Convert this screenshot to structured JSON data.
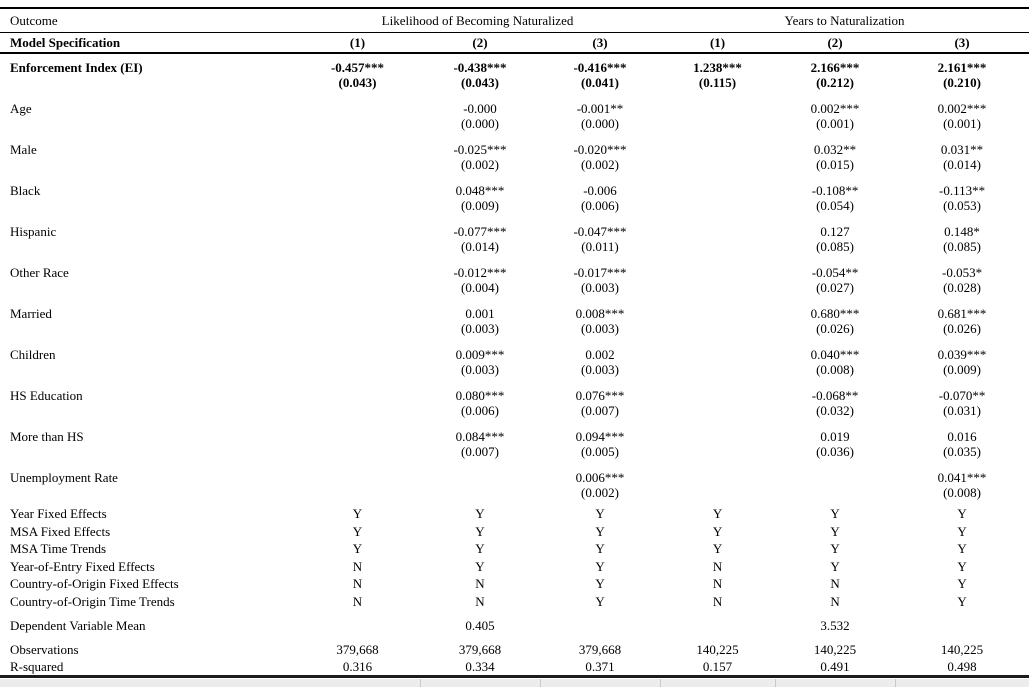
{
  "table": {
    "header": {
      "outcome_label": "Outcome",
      "model_spec_label": "Model Specification",
      "groups": [
        {
          "label": "Likelihood of Becoming Naturalized",
          "cols": [
            "(1)",
            "(2)",
            "(3)"
          ]
        },
        {
          "label": "Years to Naturalization",
          "cols": [
            "(1)",
            "(2)",
            "(3)"
          ]
        }
      ]
    },
    "coef_rows": [
      {
        "label": "Enforcement Index (EI)",
        "bold": true,
        "est": [
          "-0.457***",
          "-0.438***",
          "-0.416***",
          "1.238***",
          "2.166***",
          "2.161***"
        ],
        "se": [
          "(0.043)",
          "(0.043)",
          "(0.041)",
          "(0.115)",
          "(0.212)",
          "(0.210)"
        ]
      },
      {
        "label": "Age",
        "est": [
          "",
          "-0.000",
          "-0.001**",
          "",
          "0.002***",
          "0.002***"
        ],
        "se": [
          "",
          "(0.000)",
          "(0.000)",
          "",
          "(0.001)",
          "(0.001)"
        ]
      },
      {
        "label": "Male",
        "est": [
          "",
          "-0.025***",
          "-0.020***",
          "",
          "0.032**",
          "0.031**"
        ],
        "se": [
          "",
          "(0.002)",
          "(0.002)",
          "",
          "(0.015)",
          "(0.014)"
        ]
      },
      {
        "label": "Black",
        "est": [
          "",
          "0.048***",
          "-0.006",
          "",
          "-0.108**",
          "-0.113**"
        ],
        "se": [
          "",
          "(0.009)",
          "(0.006)",
          "",
          "(0.054)",
          "(0.053)"
        ]
      },
      {
        "label": "Hispanic",
        "est": [
          "",
          "-0.077***",
          "-0.047***",
          "",
          "0.127",
          "0.148*"
        ],
        "se": [
          "",
          "(0.014)",
          "(0.011)",
          "",
          "(0.085)",
          "(0.085)"
        ]
      },
      {
        "label": "Other Race",
        "est": [
          "",
          "-0.012***",
          "-0.017***",
          "",
          "-0.054**",
          "-0.053*"
        ],
        "se": [
          "",
          "(0.004)",
          "(0.003)",
          "",
          "(0.027)",
          "(0.028)"
        ]
      },
      {
        "label": "Married",
        "est": [
          "",
          "0.001",
          "0.008***",
          "",
          "0.680***",
          "0.681***"
        ],
        "se": [
          "",
          "(0.003)",
          "(0.003)",
          "",
          "(0.026)",
          "(0.026)"
        ]
      },
      {
        "label": "Children",
        "est": [
          "",
          "0.009***",
          "0.002",
          "",
          "0.040***",
          "0.039***"
        ],
        "se": [
          "",
          "(0.003)",
          "(0.003)",
          "",
          "(0.008)",
          "(0.009)"
        ]
      },
      {
        "label": "HS Education",
        "est": [
          "",
          "0.080***",
          "0.076***",
          "",
          "-0.068**",
          "-0.070**"
        ],
        "se": [
          "",
          "(0.006)",
          "(0.007)",
          "",
          "(0.032)",
          "(0.031)"
        ]
      },
      {
        "label": "More than HS",
        "est": [
          "",
          "0.084***",
          "0.094***",
          "",
          "0.019",
          "0.016"
        ],
        "se": [
          "",
          "(0.007)",
          "(0.005)",
          "",
          "(0.036)",
          "(0.035)"
        ]
      },
      {
        "label": "Unemployment Rate",
        "est": [
          "",
          "",
          "0.006***",
          "",
          "",
          "0.041***"
        ],
        "se": [
          "",
          "",
          "(0.002)",
          "",
          "",
          "(0.008)"
        ]
      }
    ],
    "fe_rows": [
      {
        "label": "Year Fixed Effects",
        "values": [
          "Y",
          "Y",
          "Y",
          "Y",
          "Y",
          "Y"
        ]
      },
      {
        "label": "MSA Fixed Effects",
        "values": [
          "Y",
          "Y",
          "Y",
          "Y",
          "Y",
          "Y"
        ]
      },
      {
        "label": "MSA Time Trends",
        "values": [
          "Y",
          "Y",
          "Y",
          "Y",
          "Y",
          "Y"
        ]
      },
      {
        "label": "Year-of-Entry Fixed Effects",
        "values": [
          "N",
          "Y",
          "Y",
          "N",
          "Y",
          "Y"
        ]
      },
      {
        "label": "Country-of-Origin Fixed Effects",
        "values": [
          "N",
          "N",
          "Y",
          "N",
          "N",
          "Y"
        ]
      },
      {
        "label": "Country-of-Origin Time Trends",
        "values": [
          "N",
          "N",
          "Y",
          "N",
          "N",
          "Y"
        ]
      }
    ],
    "summary_rows": [
      {
        "label": "Dependent Variable Mean",
        "values": [
          "",
          "0.405",
          "",
          "",
          "3.532",
          ""
        ]
      },
      {
        "label": "Observations",
        "values": [
          "379,668",
          "379,668",
          "379,668",
          "140,225",
          "140,225",
          "140,225"
        ]
      },
      {
        "label": "R-squared",
        "values": [
          "0.316",
          "0.334",
          "0.371",
          "0.157",
          "0.491",
          "0.498"
        ]
      }
    ]
  }
}
